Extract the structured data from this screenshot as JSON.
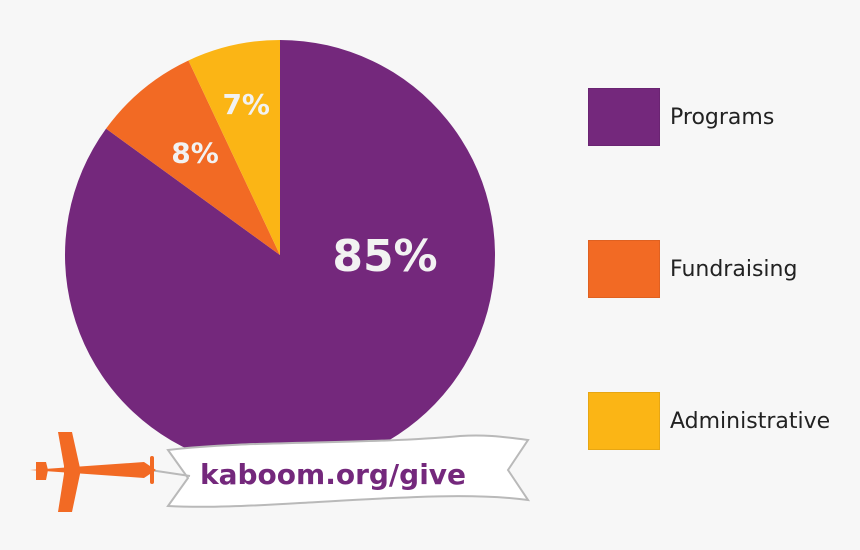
{
  "colors": {
    "programs": "#74287c",
    "fundraising": "#f26a24",
    "administrative": "#fbb515",
    "background": "#f7f7f7",
    "banner_fill": "#ffffff",
    "banner_stroke": "#b9b9b9",
    "plane": "#f26a24",
    "label_text": "#f2f2f2"
  },
  "banner": {
    "text": "kaboom.org/give"
  },
  "icons": {
    "plane": "airplane-icon"
  },
  "chart_data": {
    "type": "pie",
    "legend_position": "right",
    "slices": [
      {
        "name": "Programs",
        "value": 85,
        "label": "85%",
        "color": "#74287c"
      },
      {
        "name": "Fundraising",
        "value": 8,
        "label": "8%",
        "color": "#f26a24"
      },
      {
        "name": "Administrative",
        "value": 7,
        "label": "7%",
        "color": "#fbb515"
      }
    ],
    "legend": [
      {
        "label": "Programs",
        "color": "#74287c"
      },
      {
        "label": "Fundraising",
        "color": "#f26a24"
      },
      {
        "label": "Administrative",
        "color": "#fbb515"
      }
    ]
  }
}
